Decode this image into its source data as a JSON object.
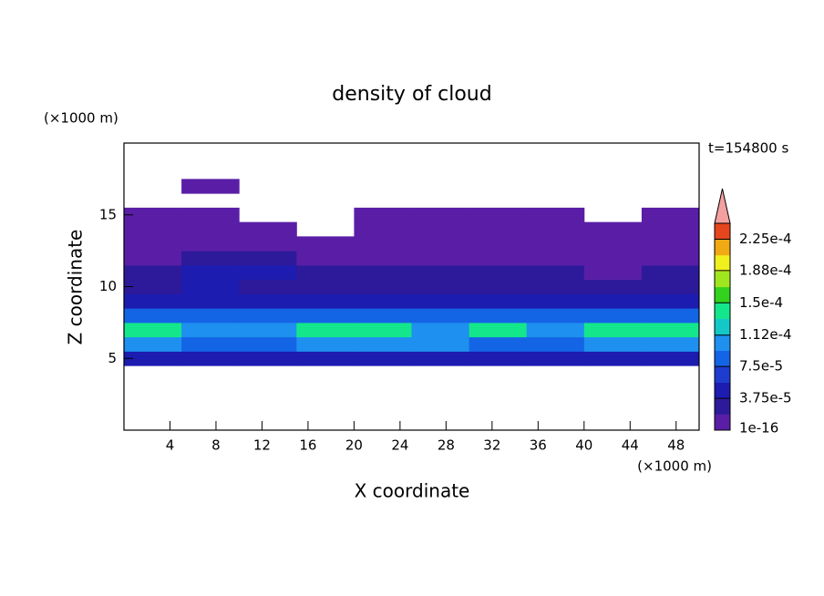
{
  "chart_data": {
    "type": "contour",
    "title": "density of cloud",
    "x_label": "X coordinate",
    "y_label": "Z coordinate",
    "x_unit": "(×1000 m)",
    "y_unit": "(×1000 m)",
    "annotation": "t=154800 s",
    "xlim": [
      0,
      50
    ],
    "ylim": [
      0,
      20
    ],
    "xticks": [
      4,
      8,
      12,
      16,
      20,
      24,
      28,
      32,
      36,
      40,
      44,
      48
    ],
    "yticks": [
      5,
      10,
      15
    ],
    "x": [
      2.5,
      7.5,
      12.5,
      17.5,
      22.5,
      27.5,
      32.5,
      37.5,
      42.5,
      47.5
    ],
    "z": [
      5,
      6,
      7,
      8,
      9,
      10,
      11,
      12,
      13,
      14,
      15,
      16,
      17
    ],
    "values": [
      [
        4e-05,
        4e-05,
        4e-05,
        4e-05,
        4e-05,
        4e-05,
        4e-05,
        4e-05,
        4e-05,
        4e-05
      ],
      [
        0.00011,
        8e-05,
        8e-05,
        0.00011,
        0.00011,
        0.00011,
        8e-05,
        8e-05,
        0.00011,
        0.00011
      ],
      [
        0.00014,
        0.00011,
        0.00011,
        0.00014,
        0.00014,
        0.00011,
        0.00014,
        0.00011,
        0.00014,
        0.00014
      ],
      [
        9e-05,
        9e-05,
        9e-05,
        9e-05,
        9e-05,
        9e-05,
        9e-05,
        9e-05,
        9e-05,
        9e-05
      ],
      [
        5e-05,
        5e-05,
        4e-05,
        5e-05,
        5e-05,
        5e-05,
        5e-05,
        5e-05,
        5e-05,
        5e-05
      ],
      [
        3e-05,
        5e-05,
        3e-05,
        3e-05,
        3e-05,
        3e-05,
        3e-05,
        3e-05,
        3e-05,
        3e-05
      ],
      [
        2e-05,
        4e-05,
        4e-05,
        2e-05,
        2e-05,
        2e-05,
        2e-05,
        2e-05,
        1e-05,
        2e-05
      ],
      [
        1.5e-05,
        2e-05,
        2e-05,
        1.5e-05,
        1.5e-05,
        1.5e-05,
        1.5e-05,
        1.5e-05,
        1.5e-05,
        1.5e-05
      ],
      [
        1e-05,
        1e-05,
        1e-05,
        1e-05,
        1e-05,
        1e-05,
        1e-05,
        1e-05,
        1e-05,
        1e-05
      ],
      [
        5e-06,
        5e-06,
        5e-06,
        0,
        5e-06,
        5e-06,
        5e-06,
        5e-06,
        5e-06,
        5e-06
      ],
      [
        5e-06,
        5e-06,
        0,
        0,
        5e-06,
        5e-06,
        5e-06,
        5e-06,
        0,
        5e-06
      ],
      [
        0,
        0,
        0,
        0,
        0,
        0,
        0,
        0,
        0,
        0
      ],
      [
        0,
        2e-06,
        0,
        0,
        0,
        0,
        0,
        0,
        0,
        0
      ]
    ],
    "colorbar": {
      "ticks": [
        1e-16,
        {
          "value": 3.75e-05,
          "label": "3.75e-5"
        },
        {
          "value": 7.5e-05,
          "label": "7.5e-5"
        },
        {
          "value": 0.000112,
          "label": "1.12e-4"
        },
        {
          "value": 0.00015,
          "label": "1.5e-4"
        },
        {
          "value": 0.000188,
          "label": "1.88e-4"
        },
        {
          "value": 0.000225,
          "label": "2.25e-4"
        }
      ],
      "colors": [
        "#5a1ea6",
        "#2d1a9a",
        "#1c1cb0",
        "#1e3cce",
        "#1464e6",
        "#1e90f0",
        "#14c8c8",
        "#14e68c",
        "#32d21e",
        "#a0e61e",
        "#f0f01e",
        "#f0aa14",
        "#e6461e"
      ],
      "extend_color": "#f4a0a0"
    }
  }
}
